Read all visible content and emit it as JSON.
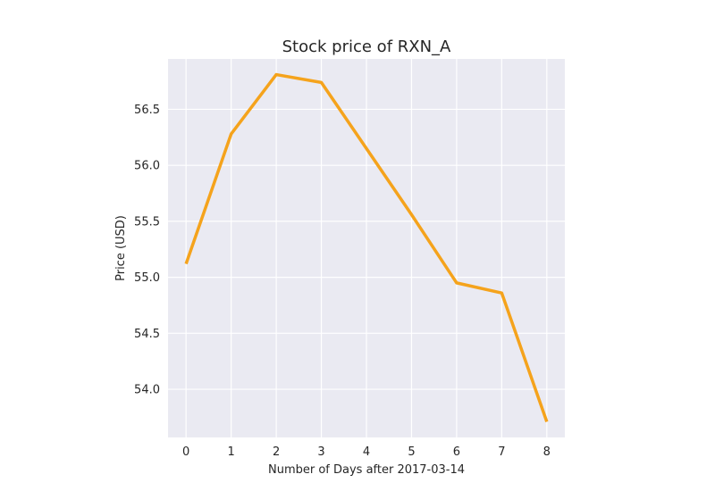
{
  "chart_data": {
    "type": "line",
    "title": "Stock price of RXN_A",
    "xlabel": "Number of Days after 2017-03-14",
    "ylabel": "Price (USD)",
    "x": [
      0,
      1,
      2,
      3,
      4,
      5,
      6,
      7,
      8
    ],
    "xticks": [
      "0",
      "1",
      "2",
      "3",
      "4",
      "5",
      "6",
      "7",
      "8"
    ],
    "yticks": [
      54.0,
      54.5,
      55.0,
      55.5,
      56.0,
      56.5
    ],
    "xlim": [
      -0.4,
      8.4
    ],
    "ylim": [
      53.57,
      56.95
    ],
    "grid": true,
    "series": [
      {
        "color": "#f5a31c",
        "values": [
          55.12,
          56.28,
          56.81,
          56.74,
          56.15,
          55.56,
          54.95,
          54.86,
          53.71
        ]
      }
    ],
    "colors": {
      "plot_background": "#eaeaf2",
      "grid": "#ffffff",
      "text": "#262626"
    }
  }
}
